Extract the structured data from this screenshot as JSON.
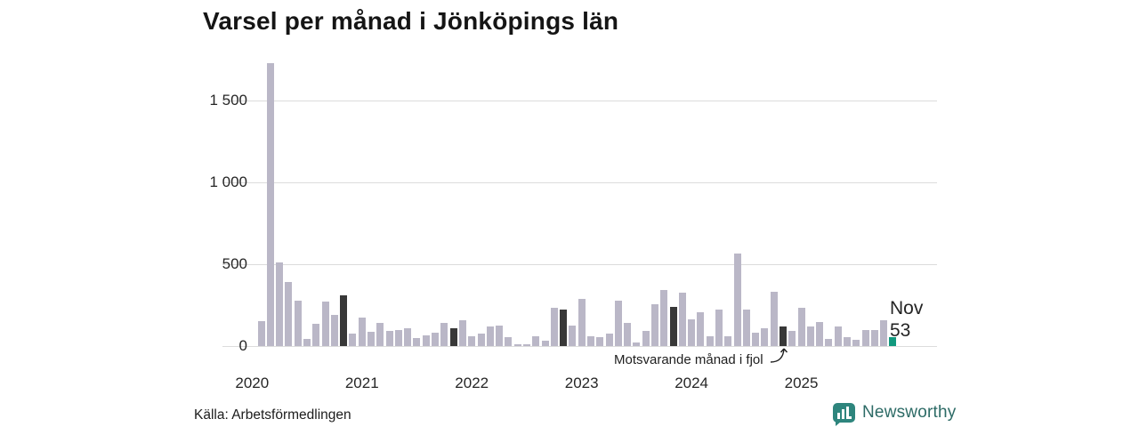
{
  "title": "Varsel per månad i Jönköpings län",
  "source": "Källa: Arbetsförmedlingen",
  "brand": {
    "name": "Newsworthy"
  },
  "annotation": {
    "text": "Motsvarande månad i fjol"
  },
  "highlight_label": {
    "month": "Nov",
    "value": "53"
  },
  "colors": {
    "bar": "#bab7c7",
    "bar_prev_year_nov": "#383838",
    "bar_current": "#12997e",
    "grid": "#dcdcdc",
    "text": "#262626",
    "brand_teal": "#2e857d"
  },
  "chart_data": {
    "type": "bar",
    "title": "Varsel per månad i Jönköpings län",
    "xlabel": "",
    "ylabel": "",
    "first_month": "2020-02",
    "values": [
      150,
      1730,
      510,
      390,
      275,
      45,
      135,
      270,
      190,
      310,
      75,
      175,
      85,
      140,
      95,
      100,
      110,
      50,
      65,
      80,
      140,
      110,
      155,
      60,
      75,
      120,
      125,
      55,
      10,
      10,
      60,
      35,
      235,
      225,
      125,
      290,
      60,
      55,
      75,
      275,
      140,
      20,
      95,
      255,
      345,
      240,
      325,
      165,
      205,
      60,
      225,
      60,
      565,
      225,
      80,
      110,
      330,
      120,
      90,
      235,
      120,
      145,
      45,
      120,
      55,
      40,
      100,
      100,
      155,
      53
    ],
    "dark_bar_indices": [
      9,
      21,
      33,
      45,
      57
    ],
    "dark_bar_meaning": "Motsvarande månad i fjol (november föregående år)",
    "current_bar_index": 69,
    "current_bar_label": "Nov 53",
    "ylim": [
      0,
      1750
    ],
    "yticks": [
      0,
      500,
      1000,
      1500
    ],
    "ytick_labels": [
      "0",
      "500",
      "1 000",
      "1 500"
    ],
    "xticks_year_start_indices": [
      -1,
      11,
      23,
      35,
      47,
      59
    ],
    "xtick_labels": [
      "2020",
      "2021",
      "2022",
      "2023",
      "2024",
      "2025"
    ],
    "grid": true,
    "legend": false
  }
}
